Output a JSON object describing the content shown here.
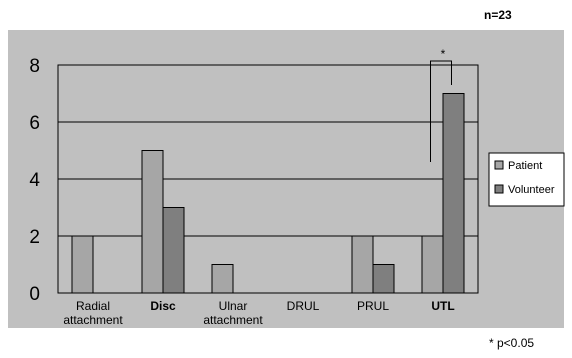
{
  "chart_data": {
    "type": "bar",
    "categories": [
      "Radial attachment",
      "Disc",
      "Ulnar attachment",
      "DRUL",
      "PRUL",
      "UTL"
    ],
    "category_lines": [
      [
        "Radial",
        "attachment"
      ],
      [
        "Disc"
      ],
      [
        "Ulnar",
        "attachment"
      ],
      [
        "DRUL"
      ],
      [
        "PRUL"
      ],
      [
        "UTL"
      ]
    ],
    "bold_categories": [
      "Disc",
      "UTL"
    ],
    "series": [
      {
        "name": "Patient",
        "values": [
          2,
          5,
          1,
          0,
          2,
          2
        ],
        "color": "#a6a6a6"
      },
      {
        "name": "Volunteer",
        "values": [
          0,
          3,
          0,
          0,
          1,
          7
        ],
        "color": "#7f7f7f"
      }
    ],
    "ylim": [
      0,
      8
    ],
    "yticks": [
      0,
      2,
      4,
      6,
      8
    ],
    "grid": true,
    "legend_position": "right",
    "plot_background": "#c0c0c0",
    "annotation_symbol": "*",
    "annotation_category": "UTL",
    "annotation_text": "* p<0.05",
    "sample_size": "n=23"
  }
}
